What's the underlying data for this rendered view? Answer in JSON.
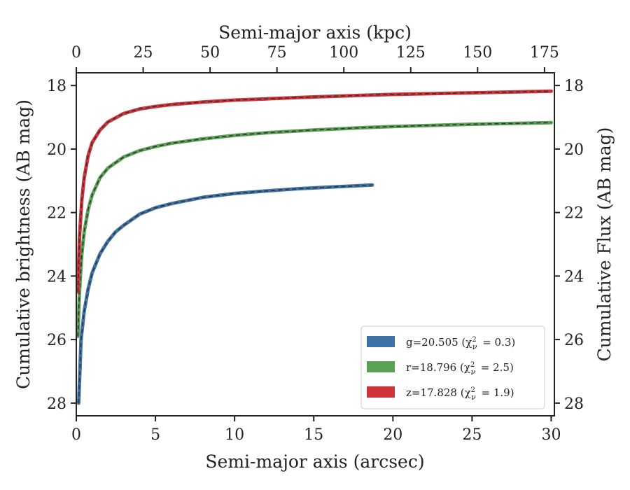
{
  "chart_data": {
    "type": "line",
    "xlabel_bottom": "Semi-major axis (arcsec)",
    "xlabel_top": "Semi-major axis (kpc)",
    "ylabel_left": "Cumulative brightness (AB mag)",
    "ylabel_right": "Cumulative Flux (AB mag)",
    "xlim": [
      0,
      30.2
    ],
    "ylim": [
      28.4,
      17.6
    ],
    "y_inverted": true,
    "xlim_top_kpc": [
      0,
      178.7
    ],
    "xticks_bottom": [
      0,
      5,
      10,
      15,
      20,
      25,
      30
    ],
    "xticks_top": [
      0,
      25,
      50,
      75,
      100,
      125,
      150,
      175
    ],
    "yticks": [
      18,
      20,
      22,
      24,
      26,
      28
    ],
    "grid": false,
    "legend_position": "lower-right",
    "series": [
      {
        "name": "g=20.505 (χ²ᵥ = 0.3)",
        "legend_label": "g=20.505",
        "legend_chi": "(χ",
        "legend_chi_val": "= 0.3)",
        "color": "#3f72a6",
        "x": [
          0.15,
          0.3,
          0.5,
          0.75,
          1.0,
          1.5,
          2.0,
          2.5,
          3.0,
          4.0,
          5.0,
          6.0,
          7.0,
          8.0,
          10.0,
          12.0,
          14.0,
          16.0,
          18.0,
          18.7
        ],
        "y": [
          28.0,
          26.0,
          25.1,
          24.4,
          23.9,
          23.3,
          22.9,
          22.6,
          22.4,
          22.05,
          21.85,
          21.72,
          21.62,
          21.52,
          21.4,
          21.32,
          21.25,
          21.2,
          21.15,
          21.13
        ]
      },
      {
        "name": "r=18.796 (χ²ᵥ = 2.5)",
        "legend_label": "r=18.796",
        "legend_chi": "(χ",
        "legend_chi_val": "= 2.5)",
        "color": "#5aa155",
        "x": [
          0.1,
          0.2,
          0.35,
          0.5,
          0.75,
          1.0,
          1.5,
          2.0,
          3.0,
          4.0,
          5.0,
          6.0,
          8.0,
          10.0,
          12.0,
          15.0,
          18.0,
          20.0,
          25.0,
          30.0
        ],
        "y": [
          25.9,
          24.5,
          23.3,
          22.6,
          21.9,
          21.45,
          20.9,
          20.6,
          20.25,
          20.05,
          19.92,
          19.82,
          19.68,
          19.57,
          19.49,
          19.4,
          19.33,
          19.29,
          19.22,
          19.17
        ]
      },
      {
        "name": "z=17.828 (χ²ᵥ = 1.9)",
        "legend_label": "z=17.828",
        "legend_chi": "(χ",
        "legend_chi_val": "= 1.9)",
        "color": "#d0333a",
        "x": [
          0.1,
          0.2,
          0.35,
          0.5,
          0.75,
          1.0,
          1.5,
          2.0,
          3.0,
          4.0,
          5.0,
          6.0,
          8.0,
          10.0,
          12.0,
          15.0,
          18.0,
          20.0,
          25.0,
          30.0
        ],
        "y": [
          24.5,
          22.8,
          21.6,
          20.9,
          20.2,
          19.8,
          19.4,
          19.15,
          18.88,
          18.74,
          18.66,
          18.6,
          18.52,
          18.46,
          18.42,
          18.36,
          18.31,
          18.28,
          18.23,
          18.18
        ]
      }
    ]
  }
}
